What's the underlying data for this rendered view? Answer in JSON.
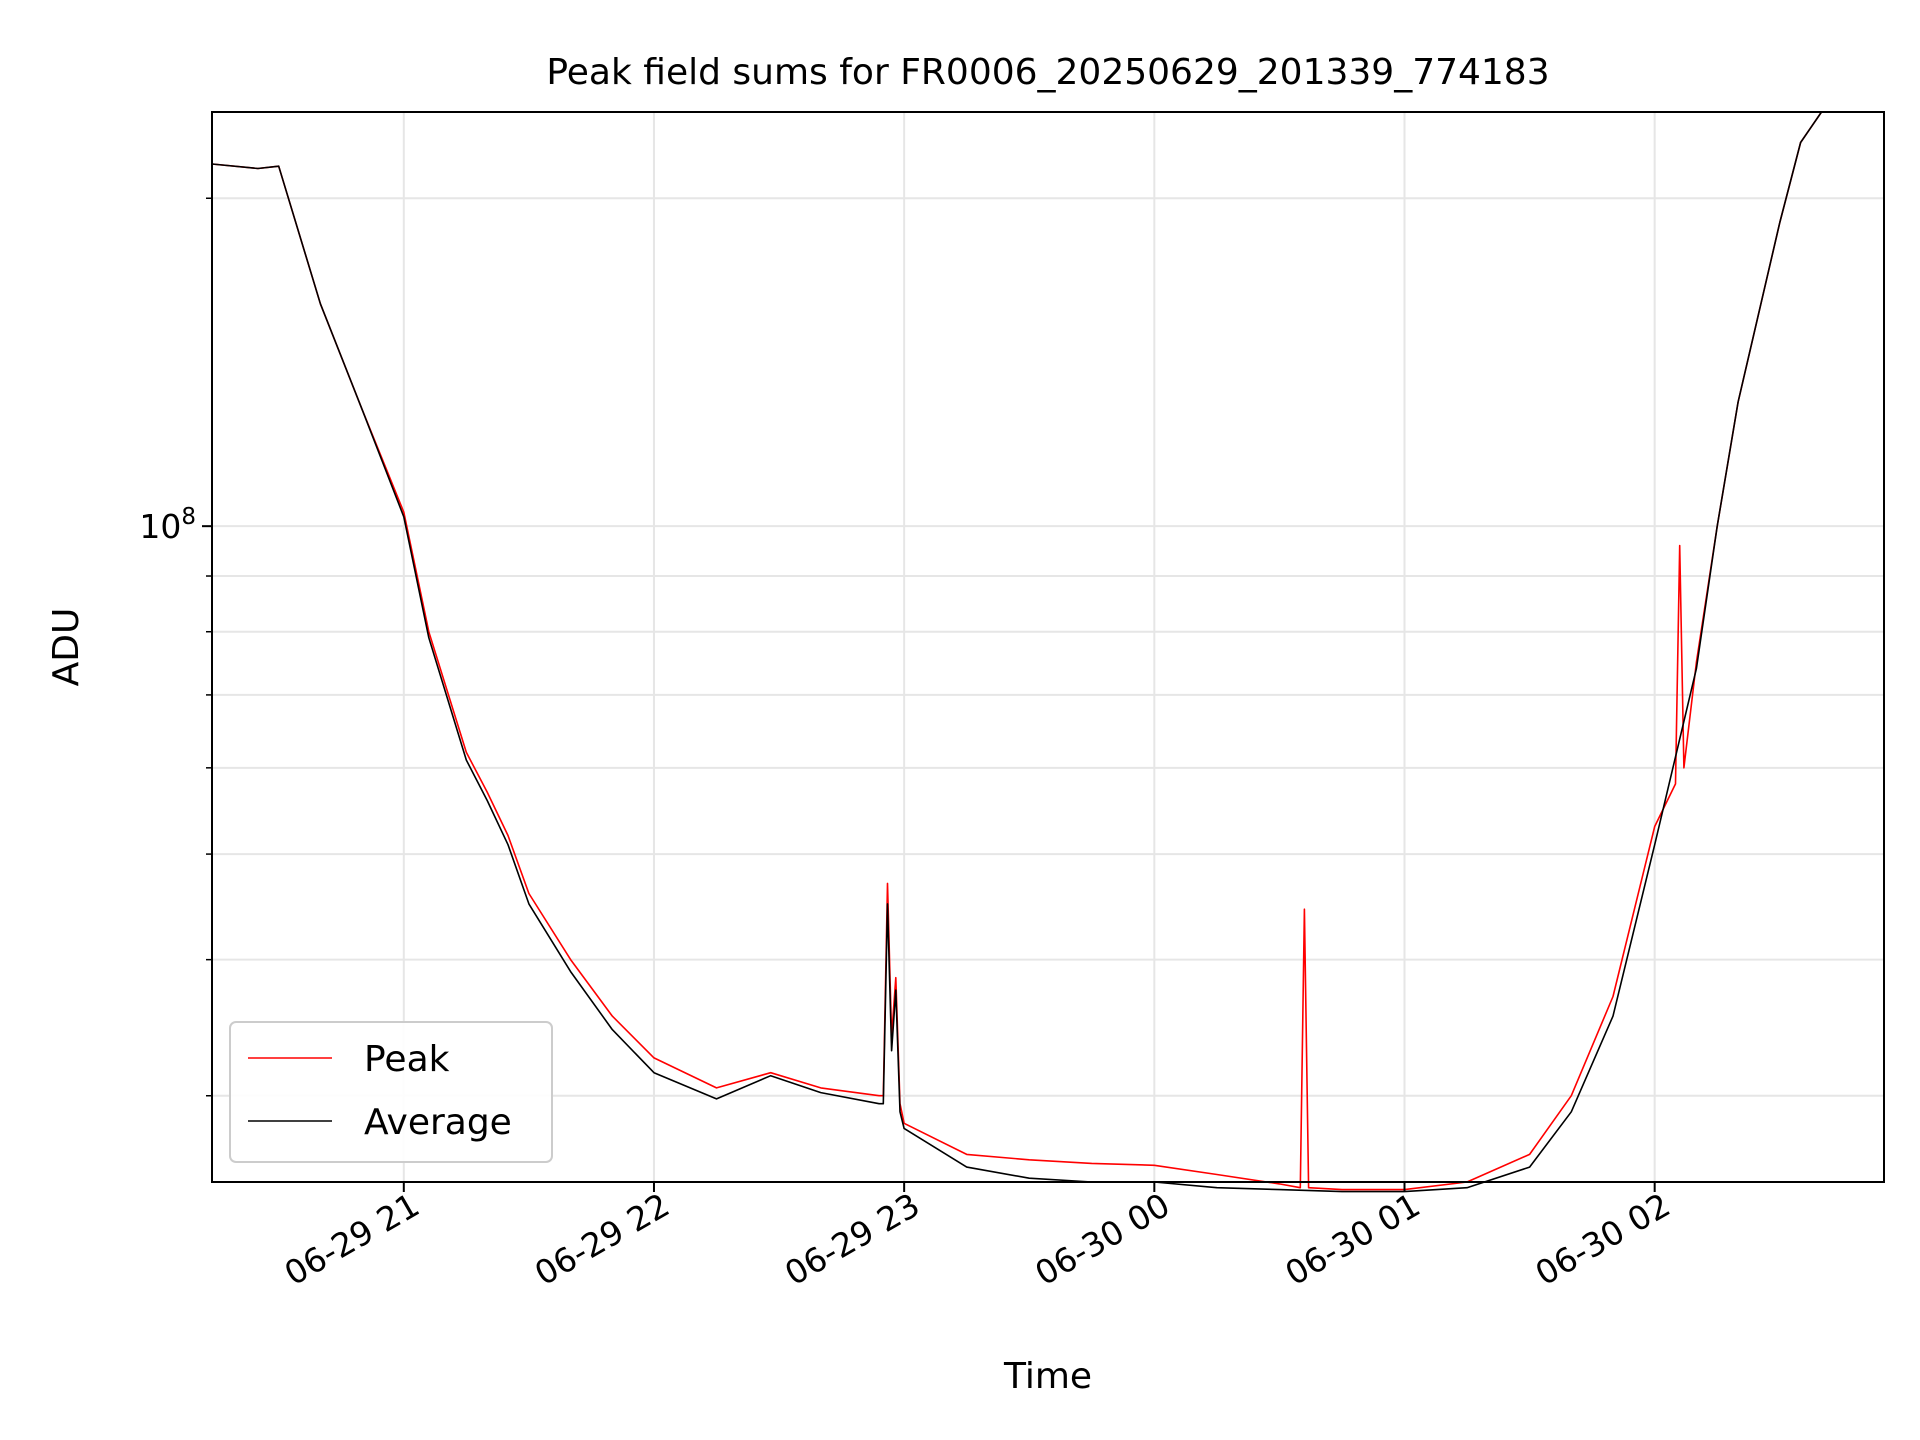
{
  "chart_data": {
    "type": "line",
    "title": "Peak field sums for FR0006_20250629_201339_774183",
    "xlabel": "Time",
    "ylabel": "ADU",
    "y_scale": "log",
    "ylim": [
      25000000,
      240000000
    ],
    "xlim": [
      "2025-06-29 20:14",
      "2025-06-30 02:55"
    ],
    "x_ticks": [
      "2025-06-29 21:00",
      "2025-06-29 22:00",
      "2025-06-29 23:00",
      "2025-06-30 00:00",
      "2025-06-30 01:00",
      "2025-06-30 02:00"
    ],
    "x_tick_labels": [
      "06-29 21",
      "06-29 22",
      "06-29 23",
      "06-30 00",
      "06-30 01",
      "06-30 02"
    ],
    "y_ticks": [
      100000000
    ],
    "y_tick_label_base": "10",
    "y_tick_label_exp": "8",
    "y_minor_ticks": [
      30000000,
      40000000,
      50000000,
      60000000,
      70000000,
      80000000,
      90000000,
      200000000
    ],
    "grid": true,
    "legend": "lower-left",
    "colors": {
      "peak": "#ff0000",
      "average": "#000000"
    },
    "series": [
      {
        "name": "Peak",
        "color": "#ff0000",
        "x": [
          "2025-06-29 20:14",
          "2025-06-29 20:25",
          "2025-06-29 20:30",
          "2025-06-29 20:40",
          "2025-06-29 20:50",
          "2025-06-29 21:00",
          "2025-06-29 21:06",
          "2025-06-29 21:15",
          "2025-06-29 21:20",
          "2025-06-29 21:25",
          "2025-06-29 21:30",
          "2025-06-29 21:40",
          "2025-06-29 21:50",
          "2025-06-29 22:00",
          "2025-06-29 22:15",
          "2025-06-29 22:28",
          "2025-06-29 22:40",
          "2025-06-29 22:54",
          "2025-06-29 22:55",
          "2025-06-29 22:56",
          "2025-06-29 22:57",
          "2025-06-29 22:58",
          "2025-06-29 22:59",
          "2025-06-29 23:00",
          "2025-06-29 23:15",
          "2025-06-29 23:30",
          "2025-06-29 23:45",
          "2025-06-30 00:00",
          "2025-06-30 00:15",
          "2025-06-30 00:30",
          "2025-06-30 00:35",
          "2025-06-30 00:36",
          "2025-06-30 00:37",
          "2025-06-30 00:45",
          "2025-06-30 01:00",
          "2025-06-30 01:15",
          "2025-06-30 01:30",
          "2025-06-30 01:40",
          "2025-06-30 01:50",
          "2025-06-30 02:00",
          "2025-06-30 02:05",
          "2025-06-30 02:06",
          "2025-06-30 02:07",
          "2025-06-30 02:10",
          "2025-06-30 02:15",
          "2025-06-30 02:20",
          "2025-06-30 02:30",
          "2025-06-30 02:35",
          "2025-06-30 02:40",
          "2025-06-30 02:55"
        ],
        "y": [
          215000000,
          213000000,
          214000000,
          160000000,
          128000000,
          103000000,
          80000000,
          62000000,
          57000000,
          52000000,
          46000000,
          40000000,
          35500000,
          32500000,
          30500000,
          31500000,
          30500000,
          30000000,
          30000000,
          47000000,
          34000000,
          38500000,
          29500000,
          28300000,
          26500000,
          26200000,
          26000000,
          25900000,
          25400000,
          24900000,
          24700000,
          44500000,
          24700000,
          24600000,
          24600000,
          25000000,
          26500000,
          30000000,
          37000000,
          53000000,
          58000000,
          96000000,
          60000000,
          75000000,
          100000000,
          130000000,
          190000000,
          225000000,
          240000000,
          240000000
        ]
      },
      {
        "name": "Average",
        "color": "#000000",
        "x": [
          "2025-06-29 20:14",
          "2025-06-29 20:25",
          "2025-06-29 20:30",
          "2025-06-29 20:40",
          "2025-06-29 20:50",
          "2025-06-29 21:00",
          "2025-06-29 21:06",
          "2025-06-29 21:15",
          "2025-06-29 21:20",
          "2025-06-29 21:25",
          "2025-06-29 21:30",
          "2025-06-29 21:40",
          "2025-06-29 21:50",
          "2025-06-29 22:00",
          "2025-06-29 22:15",
          "2025-06-29 22:28",
          "2025-06-29 22:40",
          "2025-06-29 22:54",
          "2025-06-29 22:55",
          "2025-06-29 22:56",
          "2025-06-29 22:57",
          "2025-06-29 22:58",
          "2025-06-29 22:59",
          "2025-06-29 23:00",
          "2025-06-29 23:15",
          "2025-06-29 23:30",
          "2025-06-29 23:45",
          "2025-06-30 00:00",
          "2025-06-30 00:15",
          "2025-06-30 00:30",
          "2025-06-30 00:45",
          "2025-06-30 01:00",
          "2025-06-30 01:15",
          "2025-06-30 01:30",
          "2025-06-30 01:40",
          "2025-06-30 01:50",
          "2025-06-30 02:00",
          "2025-06-30 02:10",
          "2025-06-30 02:15",
          "2025-06-30 02:20",
          "2025-06-30 02:30",
          "2025-06-30 02:35",
          "2025-06-30 02:40",
          "2025-06-30 02:55"
        ],
        "y": [
          215000000,
          213000000,
          214000000,
          160000000,
          128000000,
          102000000,
          79000000,
          61000000,
          56000000,
          51000000,
          45000000,
          39000000,
          34500000,
          31500000,
          29800000,
          31300000,
          30200000,
          29500000,
          29500000,
          45000000,
          33000000,
          37500000,
          29000000,
          28000000,
          25800000,
          25200000,
          25000000,
          25000000,
          24700000,
          24600000,
          24500000,
          24500000,
          24700000,
          25800000,
          29000000,
          35500000,
          51000000,
          74000000,
          100000000,
          130000000,
          190000000,
          225000000,
          240000000,
          240000000
        ]
      }
    ]
  }
}
